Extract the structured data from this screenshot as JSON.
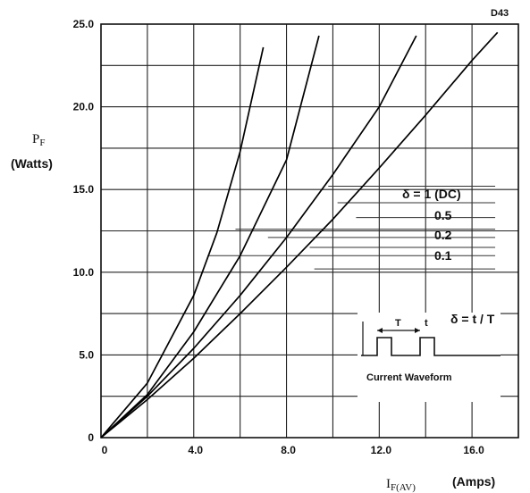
{
  "chart_data": {
    "type": "line",
    "corner_label": "D43",
    "ylabel": "P",
    "ylabel_sub": "F",
    "ylabel_units": "(Watts)",
    "xlabel": "I",
    "xlabel_sub": "F(AV)",
    "xlabel_units": "(Amps)",
    "xlim": [
      0,
      18
    ],
    "ylim": [
      0,
      25
    ],
    "x_ticks": [
      {
        "value": 0,
        "label": "0"
      },
      {
        "value": 4,
        "label": "4.0"
      },
      {
        "value": 8,
        "label": "8.0"
      },
      {
        "value": 12,
        "label": "12.0"
      },
      {
        "value": 16,
        "label": "16.0"
      }
    ],
    "y_ticks": [
      {
        "value": 0,
        "label": "0"
      },
      {
        "value": 5,
        "label": "5.0"
      },
      {
        "value": 10,
        "label": "10.0"
      },
      {
        "value": 15,
        "label": "15.0"
      },
      {
        "value": 20,
        "label": "20.0"
      },
      {
        "value": 25,
        "label": "25.0"
      }
    ],
    "grid": true,
    "series": [
      {
        "name": "δ = 1 (DC)",
        "x": [
          0,
          2,
          4,
          6,
          8,
          10,
          12,
          14,
          16,
          17.1
        ],
        "y": [
          0,
          2.3,
          4.8,
          7.5,
          10.3,
          13.2,
          16.3,
          19.5,
          22.8,
          24.5
        ]
      },
      {
        "name": "0.5",
        "x": [
          0,
          2,
          4,
          6,
          8,
          10,
          12,
          13.6
        ],
        "y": [
          0,
          2.5,
          5.4,
          8.6,
          12.1,
          15.9,
          20.0,
          24.3
        ]
      },
      {
        "name": "0.2",
        "x": [
          0,
          2,
          4,
          6,
          8,
          9.4
        ],
        "y": [
          0,
          2.6,
          6.4,
          11.0,
          16.8,
          24.3
        ]
      },
      {
        "name": "0.1",
        "x": [
          0,
          2,
          4,
          5,
          6,
          7.0
        ],
        "y": [
          0,
          3.3,
          8.6,
          12.4,
          17.3,
          23.6
        ]
      }
    ],
    "inset": {
      "T_label": "T",
      "t_label": "t",
      "formula": "δ = t / T",
      "caption": "Current  Waveform"
    }
  }
}
